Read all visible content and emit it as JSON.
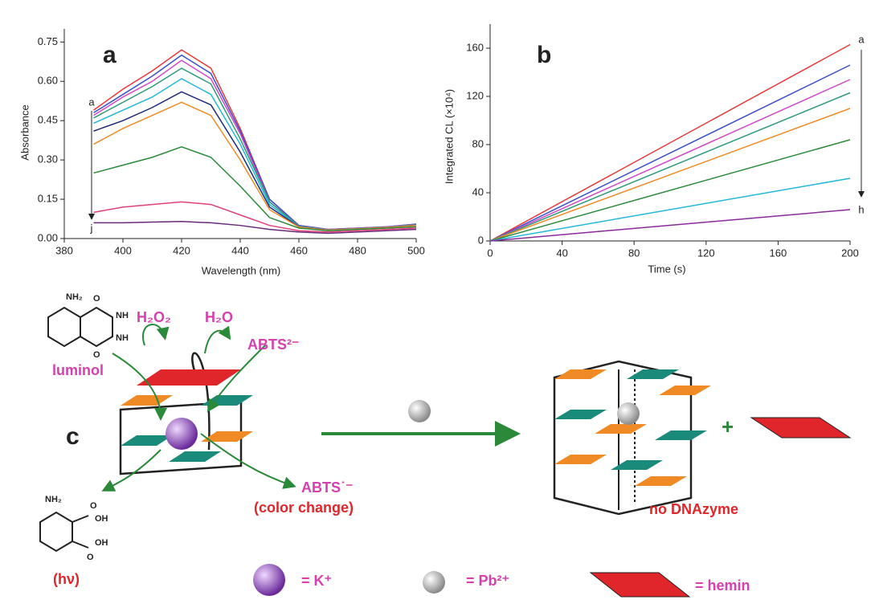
{
  "chart_data": [
    {
      "type": "line",
      "panel_label": "a",
      "x_label": "Wavelength (nm)",
      "y_label": "Absorbance",
      "annotations": [
        "a",
        "j"
      ],
      "x": [
        390,
        400,
        410,
        420,
        430,
        440,
        450,
        460,
        470,
        480,
        490,
        500
      ],
      "series": [
        {
          "color": "#e8393a",
          "values": [
            0.49,
            0.57,
            0.64,
            0.72,
            0.65,
            0.42,
            0.15,
            0.05,
            0.035,
            0.04,
            0.045,
            0.055
          ]
        },
        {
          "color": "#3b4fc8",
          "values": [
            0.48,
            0.55,
            0.62,
            0.7,
            0.63,
            0.41,
            0.15,
            0.05,
            0.035,
            0.04,
            0.045,
            0.055
          ]
        },
        {
          "color": "#d048c8",
          "values": [
            0.47,
            0.54,
            0.6,
            0.68,
            0.61,
            0.4,
            0.14,
            0.048,
            0.034,
            0.039,
            0.044,
            0.054
          ]
        },
        {
          "color": "#2e9a78",
          "values": [
            0.46,
            0.52,
            0.58,
            0.65,
            0.59,
            0.38,
            0.14,
            0.047,
            0.033,
            0.038,
            0.043,
            0.053
          ]
        },
        {
          "color": "#22b8d8",
          "values": [
            0.44,
            0.49,
            0.54,
            0.61,
            0.55,
            0.36,
            0.13,
            0.046,
            0.033,
            0.038,
            0.043,
            0.052
          ]
        },
        {
          "color": "#1c2a7a",
          "values": [
            0.41,
            0.45,
            0.5,
            0.56,
            0.51,
            0.33,
            0.12,
            0.045,
            0.032,
            0.037,
            0.042,
            0.051
          ]
        },
        {
          "color": "#f08a24",
          "values": [
            0.36,
            0.42,
            0.47,
            0.52,
            0.47,
            0.3,
            0.11,
            0.044,
            0.032,
            0.037,
            0.042,
            0.05
          ]
        },
        {
          "color": "#2a8a3a",
          "values": [
            0.25,
            0.28,
            0.31,
            0.35,
            0.31,
            0.2,
            0.08,
            0.04,
            0.03,
            0.035,
            0.04,
            0.045
          ]
        },
        {
          "color": "#e0407a",
          "values": [
            0.1,
            0.12,
            0.13,
            0.14,
            0.13,
            0.09,
            0.05,
            0.03,
            0.025,
            0.03,
            0.035,
            0.04
          ]
        },
        {
          "color": "#6a2a7a",
          "values": [
            0.06,
            0.06,
            0.063,
            0.065,
            0.06,
            0.05,
            0.035,
            0.025,
            0.02,
            0.025,
            0.03,
            0.035
          ]
        }
      ],
      "xlim": [
        380,
        500
      ],
      "xticks": [
        380,
        400,
        420,
        440,
        460,
        480,
        500
      ],
      "ylim": [
        0,
        0.8
      ],
      "yticks": [
        {
          "value": 0,
          "label": "0.00"
        },
        0.15,
        {
          "value": 0.3,
          "label": "0.30"
        },
        0.45,
        {
          "value": 0.6,
          "label": "0.60"
        },
        0.75
      ]
    },
    {
      "type": "line",
      "panel_label": "b",
      "x_label": "Time (s)",
      "y_label": "Integrated CL (×10⁴)",
      "annotations": [
        "a",
        "h"
      ],
      "x": [
        0,
        200
      ],
      "series": [
        {
          "color": "#e8393a",
          "values": [
            0,
            163
          ]
        },
        {
          "color": "#3b4fc8",
          "values": [
            0,
            146
          ]
        },
        {
          "color": "#d048c8",
          "values": [
            0,
            134
          ]
        },
        {
          "color": "#2e9a78",
          "values": [
            0,
            123
          ]
        },
        {
          "color": "#f08a24",
          "values": [
            0,
            110
          ]
        },
        {
          "color": "#2a8a3a",
          "values": [
            0,
            84
          ]
        },
        {
          "color": "#22b8d8",
          "values": [
            0,
            52
          ]
        },
        {
          "color": "#8a2a9a",
          "values": [
            0,
            26
          ]
        }
      ],
      "xlim": [
        0,
        200
      ],
      "xticks": [
        0,
        40,
        80,
        120,
        160,
        200
      ],
      "ylim": [
        0,
        180
      ],
      "yticks": [
        0,
        40,
        80,
        120,
        160
      ]
    }
  ],
  "diagram": {
    "panel_label": "c",
    "luminol": "luminol",
    "h2o2": "H₂O₂",
    "h2o": "H₂O",
    "abts2": "ABTS²⁻",
    "abts_radical": "ABTS˙⁻",
    "color_change": "(color change)",
    "hv": "(hν)",
    "no_dnazyme": "no DNAzyme",
    "plus": "+",
    "luminol_atoms": [
      "NH₂",
      "O",
      "NH",
      "NH",
      "O"
    ],
    "product_atoms": [
      "NH₂",
      "O",
      "OH",
      "OH",
      "O"
    ],
    "legend": [
      "= K⁺",
      "= Pb²⁺",
      "= hemin"
    ]
  }
}
